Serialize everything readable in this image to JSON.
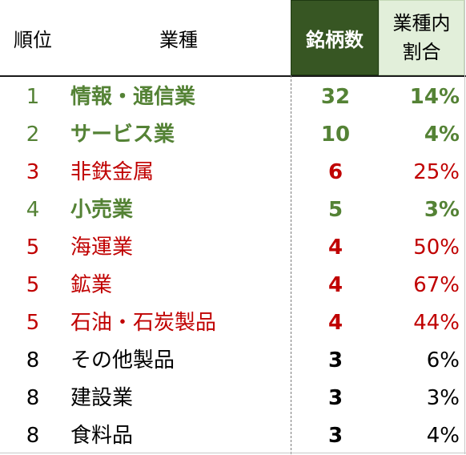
{
  "colors": {
    "green_text": "#548235",
    "red_text": "#c00000",
    "black_text": "#000000",
    "header_count_bg": "#375623",
    "header_ratio_bg": "#e2efda"
  },
  "headers": {
    "rank": "順位",
    "industry": "業種",
    "count": "銘柄数",
    "ratio_line1": "業種内",
    "ratio_line2": "割合"
  },
  "rows": [
    {
      "rank": "1",
      "industry": "情報・通信業",
      "count": "32",
      "ratio": "14%",
      "color": "green"
    },
    {
      "rank": "2",
      "industry": "サービス業",
      "count": "10",
      "ratio": "4%",
      "color": "green"
    },
    {
      "rank": "3",
      "industry": "非鉄金属",
      "count": "6",
      "ratio": "25%",
      "color": "red"
    },
    {
      "rank": "4",
      "industry": "小売業",
      "count": "5",
      "ratio": "3%",
      "color": "green"
    },
    {
      "rank": "5",
      "industry": "海運業",
      "count": "4",
      "ratio": "50%",
      "color": "red"
    },
    {
      "rank": "5",
      "industry": "鉱業",
      "count": "4",
      "ratio": "67%",
      "color": "red"
    },
    {
      "rank": "5",
      "industry": "石油・石炭製品",
      "count": "4",
      "ratio": "44%",
      "color": "red"
    },
    {
      "rank": "8",
      "industry": "その他製品",
      "count": "3",
      "ratio": "6%",
      "color": "black"
    },
    {
      "rank": "8",
      "industry": "建設業",
      "count": "3",
      "ratio": "3%",
      "color": "black"
    },
    {
      "rank": "8",
      "industry": "食料品",
      "count": "3",
      "ratio": "4%",
      "color": "black"
    }
  ]
}
